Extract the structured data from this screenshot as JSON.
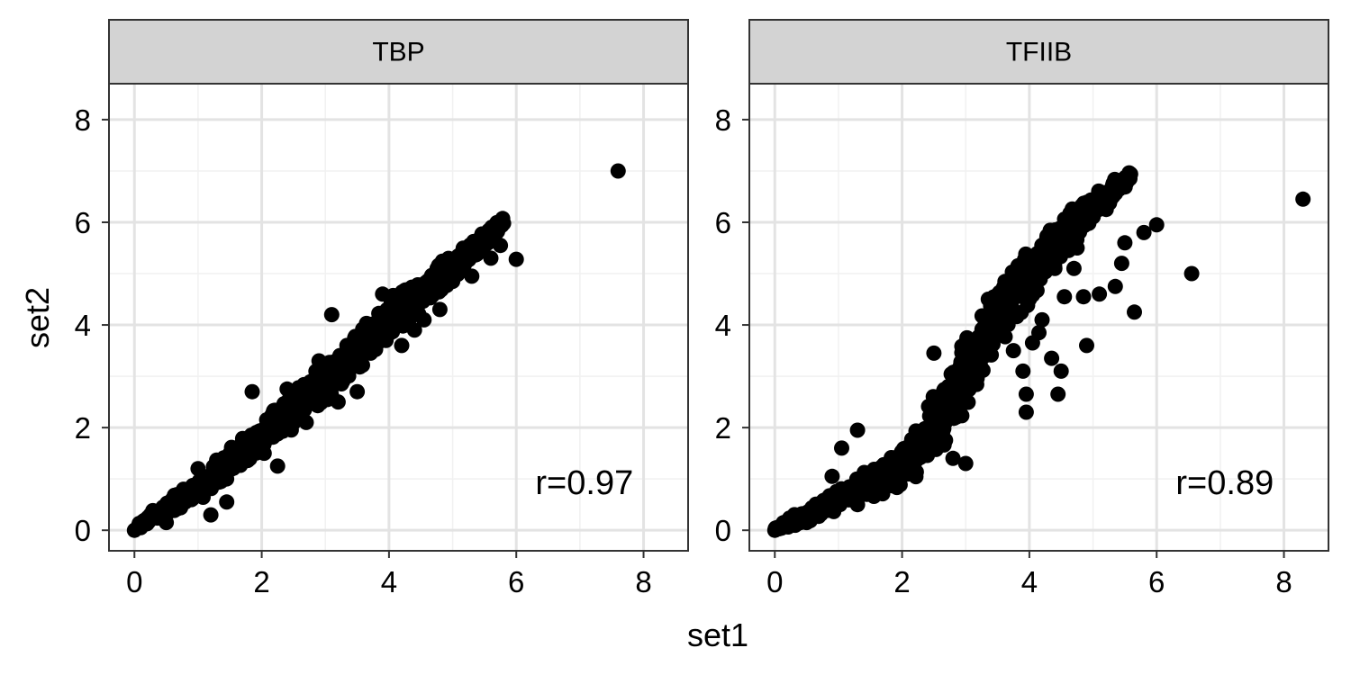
{
  "chart_data": {
    "type": "scatter",
    "x_label": "set1",
    "y_label": "set2",
    "xlim": [
      -0.4,
      8.7
    ],
    "ylim": [
      -0.4,
      8.7
    ],
    "x_ticks": [
      0,
      2,
      4,
      6,
      8
    ],
    "y_ticks": [
      0,
      2,
      4,
      6,
      8
    ],
    "grid": true,
    "colors": {
      "point": "#000000",
      "strip_fill": "#d3d3d3",
      "grid_major": "#e3e3e3",
      "grid_minor": "#f1f1f1",
      "border": "#333333"
    },
    "panels": [
      {
        "title": "TBP",
        "annotation": "r=0.97",
        "annotation_pos": [
          6.3,
          0.95
        ],
        "band": {
          "spine": [
            [
              0,
              0.05
            ],
            [
              1,
              0.8
            ],
            [
              2,
              1.8
            ],
            [
              3,
              2.9
            ],
            [
              4,
              4.1
            ],
            [
              5,
              5.1
            ],
            [
              5.8,
              6.0
            ]
          ],
          "half_width": [
            0.12,
            0.28,
            0.45,
            0.55,
            0.5,
            0.35,
            0.15
          ]
        },
        "points": [
          [
            7.6,
            7.0
          ],
          [
            6.0,
            5.28
          ],
          [
            5.75,
            5.55
          ],
          [
            5.6,
            5.3
          ],
          [
            5.5,
            5.6
          ],
          [
            5.0,
            4.85
          ],
          [
            4.55,
            4.1
          ],
          [
            4.4,
            3.9
          ],
          [
            4.2,
            3.6
          ],
          [
            3.5,
            2.7
          ],
          [
            2.25,
            1.25
          ],
          [
            1.45,
            0.55
          ],
          [
            1.2,
            0.3
          ],
          [
            1.85,
            2.7
          ],
          [
            2.7,
            2.1
          ],
          [
            0.25,
            0.3
          ],
          [
            0.5,
            0.15
          ],
          [
            3.1,
            4.2
          ],
          [
            3.9,
            4.6
          ],
          [
            0.0,
            0.0
          ],
          [
            0.1,
            0.05
          ],
          [
            5.3,
            4.95
          ],
          [
            4.8,
            4.3
          ],
          [
            2.9,
            3.3
          ],
          [
            3.2,
            2.5
          ],
          [
            1.7,
            1.75
          ],
          [
            0.8,
            0.55
          ],
          [
            1.0,
            1.2
          ],
          [
            2.4,
            2.75
          ],
          [
            4.05,
            3.95
          ]
        ]
      },
      {
        "title": "TFIIB",
        "annotation": "r=0.89",
        "annotation_pos": [
          6.3,
          0.95
        ],
        "band": {
          "spine": [
            [
              0,
              0.02
            ],
            [
              1,
              0.6
            ],
            [
              2,
              1.2
            ],
            [
              2.5,
              2.0
            ],
            [
              3,
              3.0
            ],
            [
              3.5,
              4.2
            ],
            [
              4,
              5.0
            ],
            [
              5,
              6.3
            ],
            [
              5.6,
              6.9
            ]
          ],
          "half_width": [
            0.08,
            0.3,
            0.5,
            0.75,
            0.9,
            0.85,
            0.7,
            0.35,
            0.15
          ]
        },
        "points": [
          [
            8.3,
            6.45
          ],
          [
            6.55,
            5.0
          ],
          [
            6.0,
            5.95
          ],
          [
            5.8,
            5.8
          ],
          [
            5.65,
            4.25
          ],
          [
            5.5,
            5.6
          ],
          [
            5.45,
            5.2
          ],
          [
            5.35,
            4.75
          ],
          [
            5.1,
            4.6
          ],
          [
            4.9,
            3.6
          ],
          [
            4.85,
            4.55
          ],
          [
            4.5,
            3.1
          ],
          [
            4.35,
            3.35
          ],
          [
            4.15,
            3.85
          ],
          [
            4.45,
            2.65
          ],
          [
            3.95,
            2.3
          ],
          [
            3.95,
            2.65
          ],
          [
            3.9,
            3.1
          ],
          [
            4.05,
            3.65
          ],
          [
            4.7,
            5.1
          ],
          [
            4.55,
            4.55
          ],
          [
            2.5,
            3.45
          ],
          [
            1.3,
            1.95
          ],
          [
            1.05,
            1.6
          ],
          [
            0.9,
            1.05
          ],
          [
            1.3,
            0.5
          ],
          [
            0.5,
            0.15
          ],
          [
            0.0,
            0.0
          ],
          [
            2.8,
            1.4
          ],
          [
            3.0,
            1.3
          ],
          [
            4.2,
            4.1
          ],
          [
            3.75,
            3.5
          ],
          [
            4.95,
            6.05
          ],
          [
            4.4,
            5.1
          ],
          [
            4.75,
            5.5
          ]
        ]
      }
    ]
  }
}
